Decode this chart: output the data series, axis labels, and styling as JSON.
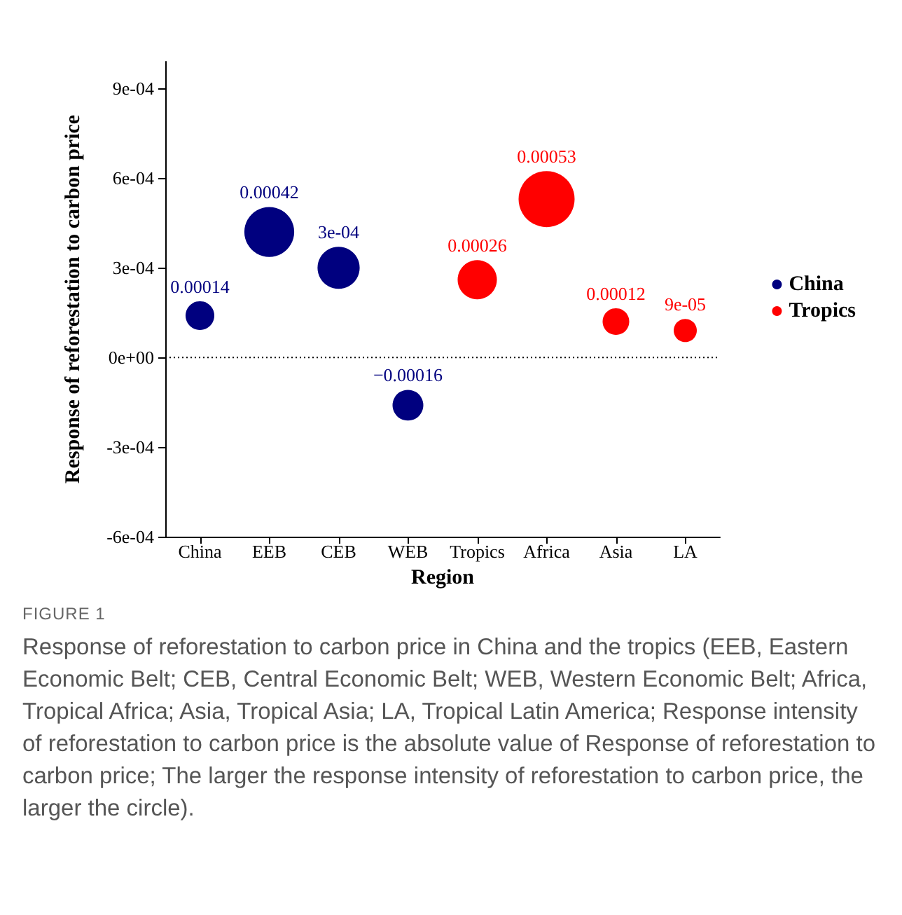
{
  "chart_data": {
    "type": "bubble",
    "xlabel": "Region",
    "ylabel": "Response of reforestation to carbon price",
    "categories": [
      "China",
      "EEB",
      "CEB",
      "WEB",
      "Tropics",
      "Africa",
      "Asia",
      "LA"
    ],
    "series": [
      {
        "name": "China",
        "color": "#00007f",
        "x": [
          "China",
          "EEB",
          "CEB",
          "WEB"
        ],
        "values": [
          0.00014,
          0.00042,
          0.0003,
          -0.00016
        ],
        "sizes": [
          0.264,
          0.792,
          0.566,
          0.302
        ],
        "value_labels": [
          "0.00014",
          "0.00042",
          "3e-04",
          "−0.00016"
        ]
      },
      {
        "name": "Tropics",
        "color": "#ff0000",
        "x": [
          "Tropics",
          "Africa",
          "Asia",
          "LA"
        ],
        "values": [
          0.00026,
          0.00053,
          0.00012,
          9e-05
        ],
        "sizes": [
          0.491,
          1,
          0.226,
          0.17
        ],
        "value_labels": [
          "0.00026",
          "0.00053",
          "0.00012",
          "9e-05"
        ]
      }
    ],
    "ylim": [
      -0.0006,
      0.00099
    ],
    "yticks": [
      {
        "value": -0.0006,
        "label": "-6e-04"
      },
      {
        "value": -0.0003,
        "label": "-3e-04"
      },
      {
        "value": 0,
        "label": "0e+00"
      },
      {
        "value": 0.0003,
        "label": "3e-04"
      },
      {
        "value": 0.0006,
        "label": "6e-04"
      },
      {
        "value": 0.0009,
        "label": "9e-04"
      }
    ],
    "ref_lines": [
      {
        "axis": "y",
        "value": 0,
        "line_style": "dotted",
        "color": "#000000"
      }
    ],
    "grid": false,
    "legend": "right",
    "marker": "circle",
    "annotations": [
      "FIGURE 1",
      "Response of reforestation to carbon price in China and the tropics (EEB, Eastern Economic Belt; CEB, Central Economic Belt; WEB, Western Economic Belt; Africa, Tropical Africa; Asia, Tropical Asia; LA, Tropical Latin America; Response intensity of reforestation to carbon price is the absolute value of Response of reforestation to carbon price; The larger the response intensity of reforestation to carbon price, the larger the circle)."
    ]
  }
}
